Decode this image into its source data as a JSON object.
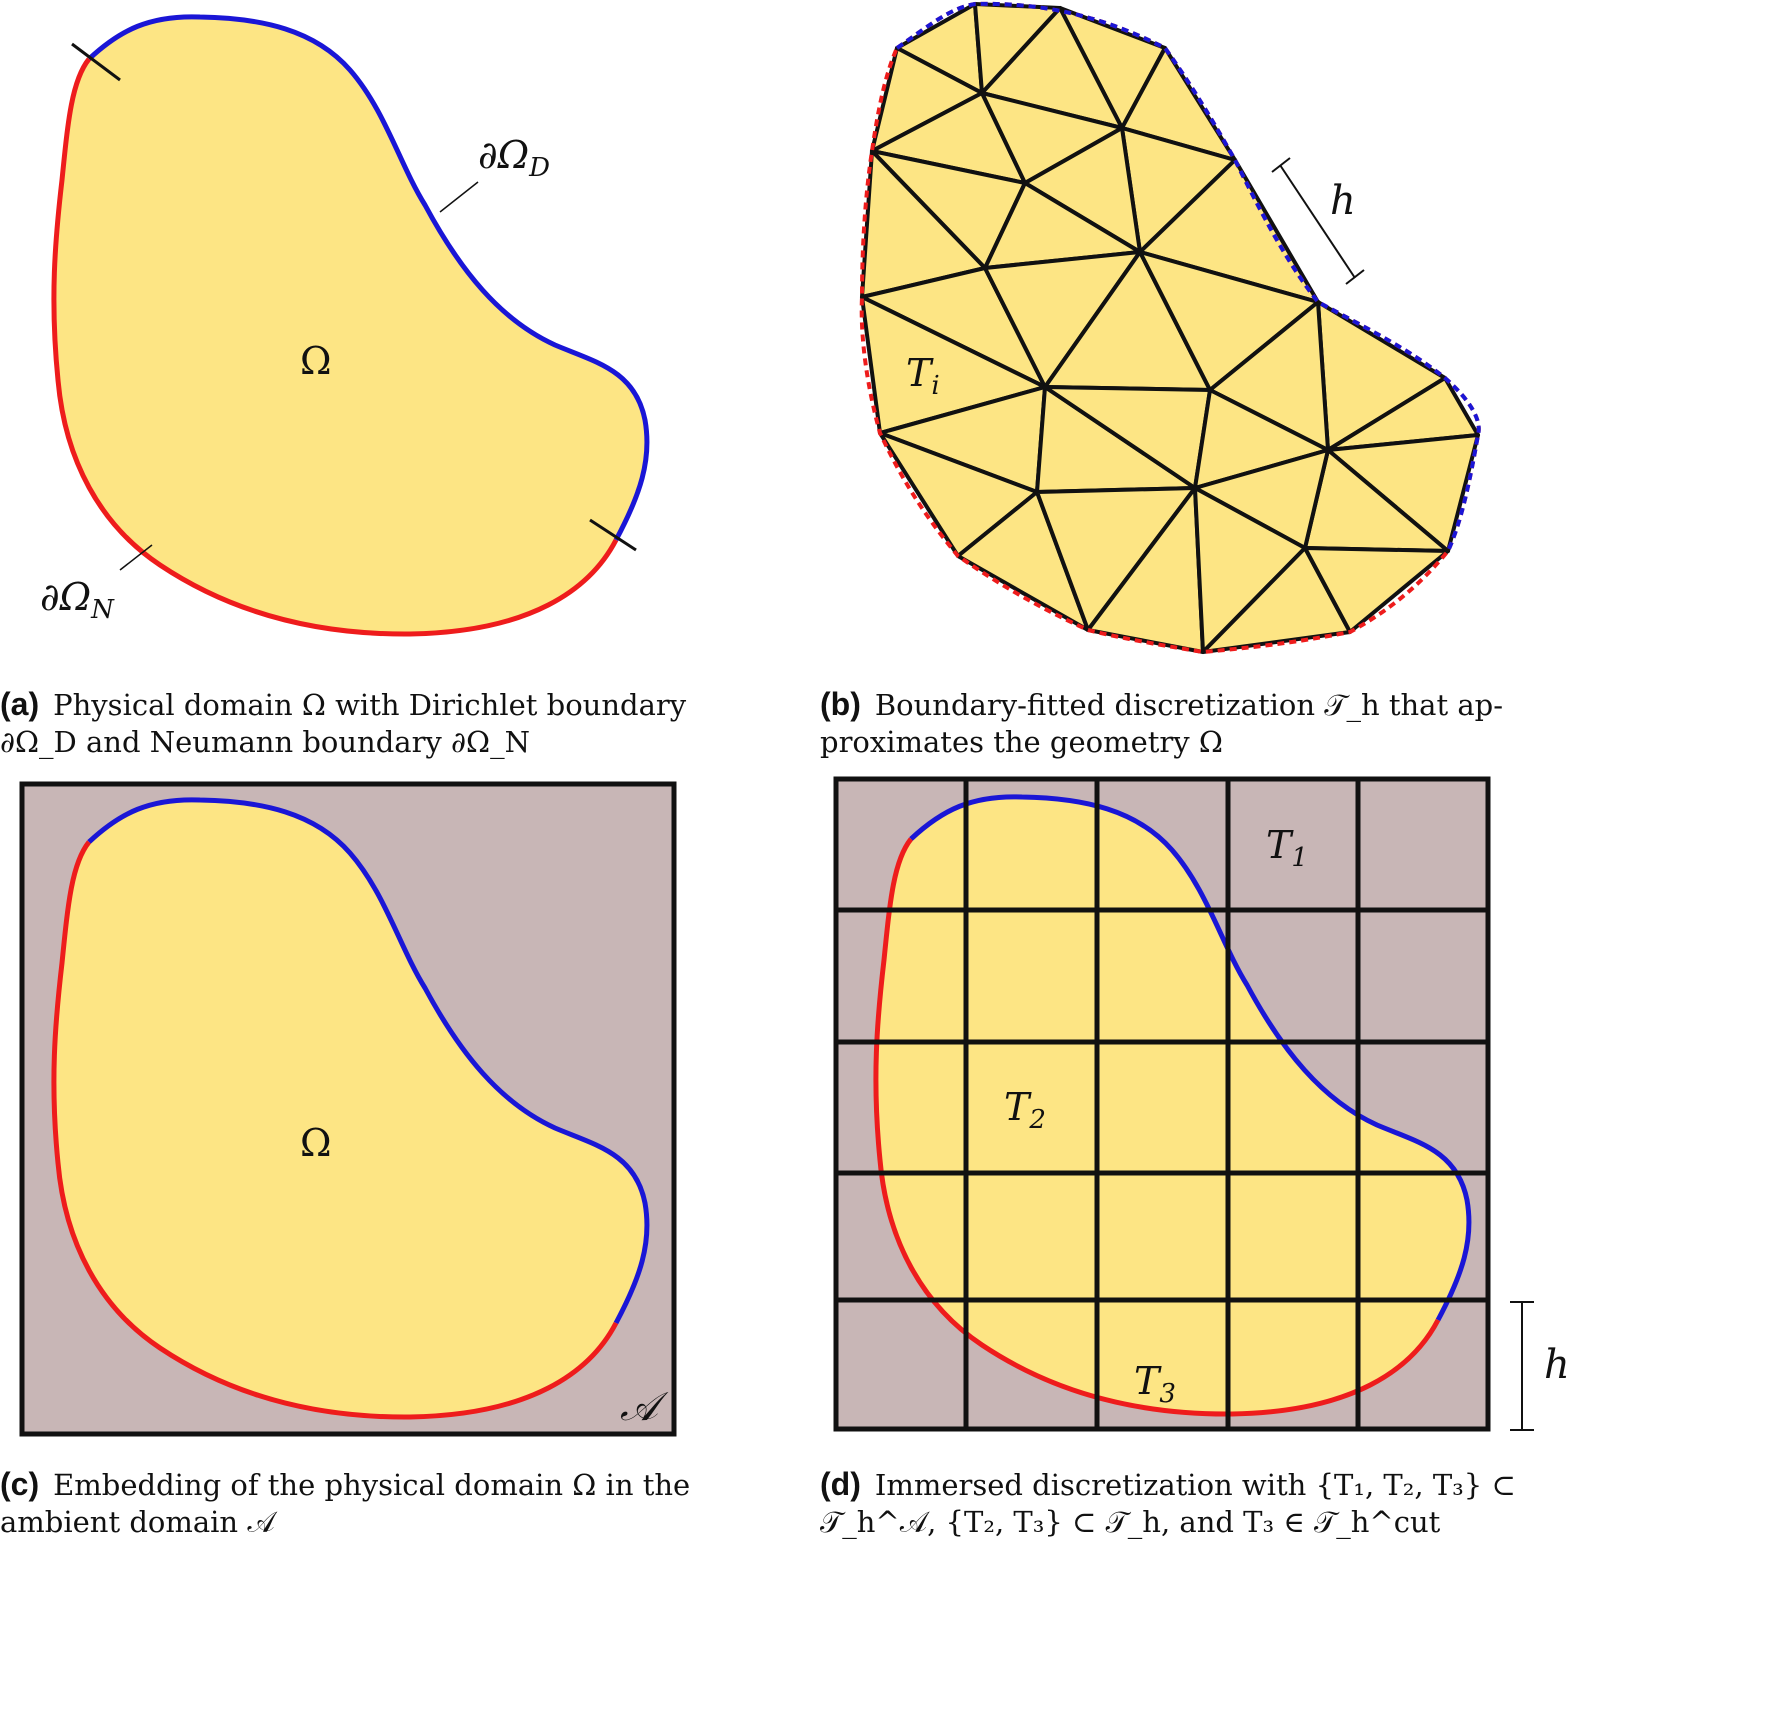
{
  "panels": [
    {
      "tag": "(a)",
      "caption_line1": "Physical domain Ω with Dirichlet boundary",
      "caption_line2": "∂Ω_D and Neumann boundary ∂Ω_N",
      "labels": {
        "domain": "Ω",
        "dirichlet": "∂Ω",
        "dirichlet_sub": "D",
        "neumann": "∂Ω",
        "neumann_sub": "N"
      }
    },
    {
      "tag": "(b)",
      "caption_line1": "Boundary-fitted discretization 𝒯_h that ap-",
      "caption_line2": "proximates the geometry Ω",
      "labels": {
        "element": "T",
        "element_sub": "i",
        "mesh_size": "h"
      }
    },
    {
      "tag": "(c)",
      "caption_line1": "Embedding of the physical domain Ω in the",
      "caption_line2": "ambient domain 𝒜",
      "labels": {
        "domain": "Ω",
        "ambient": "𝒜"
      }
    },
    {
      "tag": "(d)",
      "caption_line1": "Immersed discretization with {T₁, T₂, T₃} ⊂",
      "caption_line2": "𝒯_h^𝒜, {T₂, T₃} ⊂ 𝒯_h, and T₃ ∈ 𝒯_h^cut",
      "labels": {
        "t1": "T",
        "t1_sub": "1",
        "t2": "T",
        "t2_sub": "2",
        "t3": "T",
        "t3_sub": "3",
        "mesh_size": "h"
      }
    }
  ],
  "colors": {
    "domain_fill": "#fde584",
    "ambient_fill": "#c8b6b6",
    "dirichlet": "#1a16d6",
    "neumann": "#ee1c1c",
    "mesh": "#111111"
  }
}
